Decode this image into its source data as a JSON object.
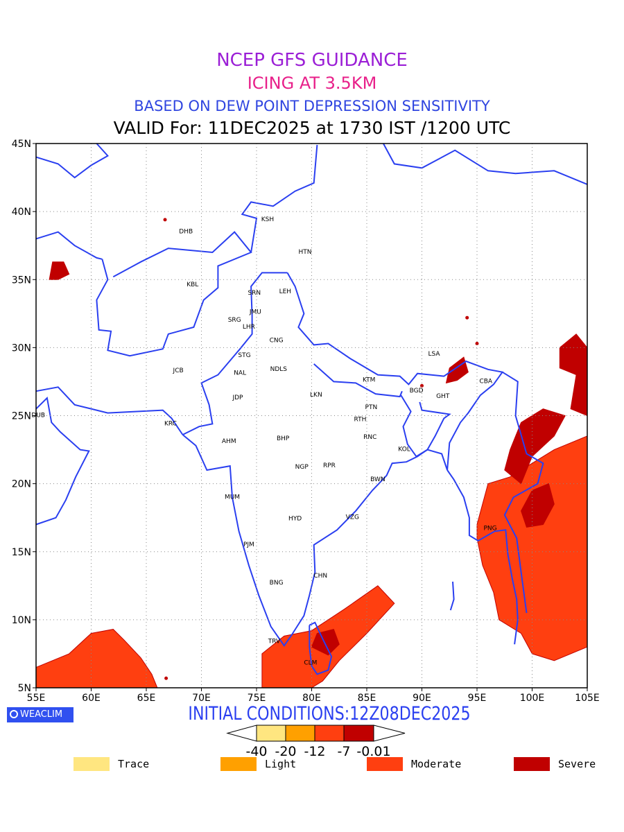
{
  "titles": {
    "line1": "NCEP GFS GUIDANCE",
    "line2": "ICING AT 3.5KM",
    "line3": "BASED ON DEW POINT DEPRESSION SENSITIVITY",
    "line4": "VALID For: 11DEC2025 at 1730 IST /1200 UTC"
  },
  "colors": {
    "line1": "#9b1fd6",
    "line2": "#e8208a",
    "line3": "#2f45e0",
    "coast": "#2a3ff0",
    "grid": "#888888",
    "trace": "#ffe680",
    "light": "#ffa000",
    "moderate": "#ff3f10",
    "severe": "#c00000",
    "badge_bg": "#3050f0"
  },
  "map": {
    "lon_ticks": [
      "55E",
      "60E",
      "65E",
      "70E",
      "75E",
      "80E",
      "85E",
      "90E",
      "95E",
      "100E",
      "105E"
    ],
    "lat_ticks": [
      "5N",
      "10N",
      "15N",
      "20N",
      "25N",
      "30N",
      "35N",
      "40N",
      "45N"
    ],
    "lon_range": [
      55,
      105
    ],
    "lat_range": [
      5,
      45
    ],
    "stations": [
      {
        "id": "KSH",
        "lon": 76.0,
        "lat": 39.5
      },
      {
        "id": "DHB",
        "lon": 68.6,
        "lat": 38.6
      },
      {
        "id": "HTN",
        "lon": 79.4,
        "lat": 37.1
      },
      {
        "id": "KBL",
        "lon": 69.2,
        "lat": 34.7
      },
      {
        "id": "SRN",
        "lon": 74.8,
        "lat": 34.1
      },
      {
        "id": "LEH",
        "lon": 77.6,
        "lat": 34.2
      },
      {
        "id": "JMU",
        "lon": 74.9,
        "lat": 32.7
      },
      {
        "id": "SRG",
        "lon": 73.0,
        "lat": 32.1
      },
      {
        "id": "LHR",
        "lon": 74.3,
        "lat": 31.6
      },
      {
        "id": "CNG",
        "lon": 76.8,
        "lat": 30.6
      },
      {
        "id": "STG",
        "lon": 73.9,
        "lat": 29.5
      },
      {
        "id": "LSA",
        "lon": 91.1,
        "lat": 29.6
      },
      {
        "id": "JCB",
        "lon": 67.9,
        "lat": 28.4
      },
      {
        "id": "NAL",
        "lon": 73.5,
        "lat": 28.2
      },
      {
        "id": "NDLS",
        "lon": 77.0,
        "lat": 28.5
      },
      {
        "id": "KTM",
        "lon": 85.2,
        "lat": 27.7
      },
      {
        "id": "CBA",
        "lon": 95.8,
        "lat": 27.6
      },
      {
        "id": "BGD",
        "lon": 89.5,
        "lat": 26.9
      },
      {
        "id": "GHT",
        "lon": 91.9,
        "lat": 26.5
      },
      {
        "id": "JDP",
        "lon": 73.3,
        "lat": 26.4
      },
      {
        "id": "LKN",
        "lon": 80.4,
        "lat": 26.6
      },
      {
        "id": "PTN",
        "lon": 85.4,
        "lat": 25.7
      },
      {
        "id": "DUB",
        "lon": 55.2,
        "lat": 25.1
      },
      {
        "id": "RTH",
        "lon": 84.4,
        "lat": 24.8
      },
      {
        "id": "KRC",
        "lon": 67.2,
        "lat": 24.5
      },
      {
        "id": "AHM",
        "lon": 72.5,
        "lat": 23.2
      },
      {
        "id": "BHP",
        "lon": 77.4,
        "lat": 23.4
      },
      {
        "id": "RNC",
        "lon": 85.3,
        "lat": 23.5
      },
      {
        "id": "KOL",
        "lon": 88.4,
        "lat": 22.6
      },
      {
        "id": "NGP",
        "lon": 79.1,
        "lat": 21.3
      },
      {
        "id": "RPR",
        "lon": 81.6,
        "lat": 21.4
      },
      {
        "id": "BWN",
        "lon": 86.0,
        "lat": 20.4
      },
      {
        "id": "MUM",
        "lon": 72.8,
        "lat": 19.1
      },
      {
        "id": "HYD",
        "lon": 78.5,
        "lat": 17.5
      },
      {
        "id": "VZG",
        "lon": 83.7,
        "lat": 17.6
      },
      {
        "id": "PNG",
        "lon": 96.2,
        "lat": 16.8
      },
      {
        "id": "PJM",
        "lon": 74.3,
        "lat": 15.6
      },
      {
        "id": "CHN",
        "lon": 80.8,
        "lat": 13.3
      },
      {
        "id": "BNG",
        "lon": 76.8,
        "lat": 12.8
      },
      {
        "id": "TRV",
        "lon": 76.6,
        "lat": 8.5
      },
      {
        "id": "CLM",
        "lon": 79.9,
        "lat": 6.9
      }
    ]
  },
  "colorbar": {
    "labels": [
      "-40",
      "-20",
      "-12",
      "-7",
      "-0.01"
    ]
  },
  "legend": [
    {
      "label": "Trace",
      "color_key": "trace"
    },
    {
      "label": "Light",
      "color_key": "light"
    },
    {
      "label": "Moderate",
      "color_key": "moderate"
    },
    {
      "label": "Severe",
      "color_key": "severe"
    }
  ],
  "footer": {
    "badge": "WEACLIM",
    "initial_conditions": "INITIAL CONDITIONS:12Z08DEC2025"
  }
}
